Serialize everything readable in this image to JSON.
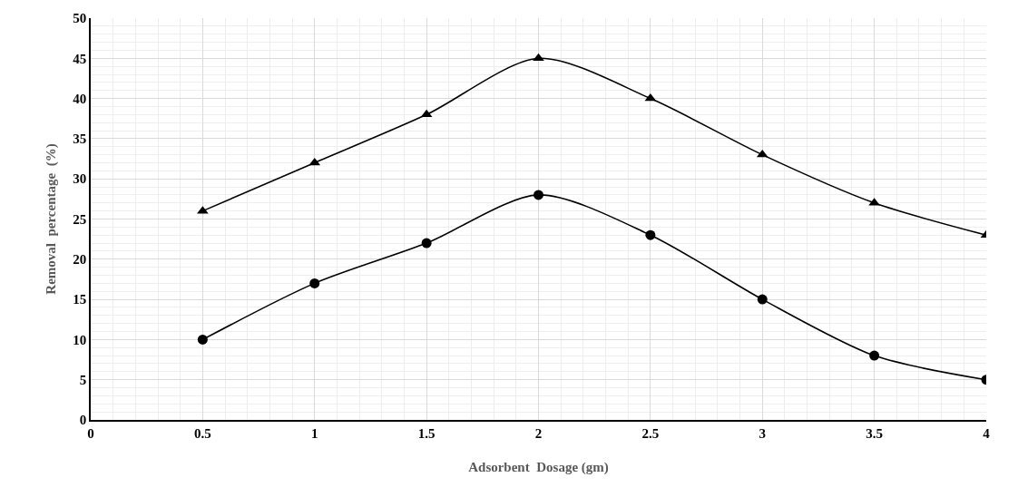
{
  "chart_data": {
    "type": "line",
    "xlabel": "Adsorbent  Dosage (gm)",
    "ylabel": "Removal  percentage  (%)",
    "x": [
      0.5,
      1,
      1.5,
      2,
      2.5,
      3,
      3.5,
      4
    ],
    "series": [
      {
        "color": "#000000",
        "marker": "triangle",
        "values": [
          26,
          32,
          38,
          45,
          40,
          33,
          27,
          23
        ]
      },
      {
        "color": "#000000",
        "marker": "circle",
        "values": [
          10,
          17,
          22,
          28,
          23,
          15,
          8,
          5
        ]
      }
    ],
    "xlim": [
      0,
      4
    ],
    "xticks": [
      0,
      0.5,
      1,
      1.5,
      2,
      2.5,
      3,
      3.5,
      4
    ],
    "ylim": [
      0,
      50
    ],
    "yticks": [
      0,
      5,
      10,
      15,
      20,
      25,
      30,
      35,
      40,
      45,
      50
    ],
    "grid": true,
    "line_style": "solid"
  }
}
